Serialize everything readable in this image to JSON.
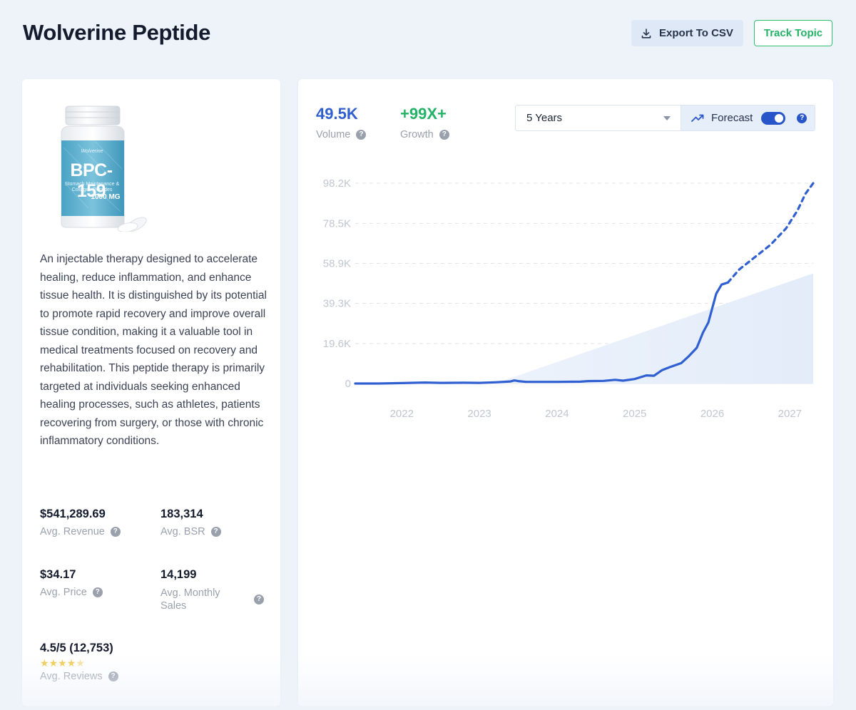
{
  "header": {
    "title": "Wolverine Peptide",
    "export_label": "Export To CSV",
    "track_label": "Track Topic"
  },
  "product": {
    "image_alt": "BPC-159 bottle",
    "bottle_brand": "Wolverine",
    "bottle_name": "BPC-159",
    "bottle_subtext": "Stomach Maintenance & Collagen Peptides",
    "bottle_dose": "1000 MG",
    "description": "An injectable therapy designed to accelerate healing, reduce inflammation, and enhance tissue health. It is distinguished by its potential to promote rapid recovery and improve overall tissue condition, making it a valuable tool in medical treatments focused on recovery and rehabilitation. This peptide therapy is primarily targeted at individuals seeking enhanced healing processes, such as athletes, patients recovering from surgery, or those with chronic inflammatory conditions."
  },
  "stats": {
    "revenue": {
      "value": "$541,289.69",
      "label": "Avg. Revenue"
    },
    "bsr": {
      "value": "183,314",
      "label": "Avg. BSR"
    },
    "price": {
      "value": "$34.17",
      "label": "Avg. Price"
    },
    "monthly_sales": {
      "value": "14,199",
      "label": "Avg. Monthly Sales"
    },
    "reviews": {
      "value": "4.5/5 (12,753)",
      "label": "Avg. Reviews",
      "rating": 4.5
    }
  },
  "metrics": {
    "volume": {
      "value": "49.5K",
      "label": "Volume"
    },
    "growth": {
      "value": "+99X+",
      "label": "Growth"
    }
  },
  "controls": {
    "range_selected": "5 Years",
    "forecast_label": "Forecast",
    "forecast_on": true
  },
  "icons": {
    "help": "?",
    "star": "★"
  },
  "colors": {
    "line": "#2f5fd0",
    "growth": "#22b366",
    "accent": "#2856c8",
    "track": "#2fbf71"
  },
  "chart_data": {
    "type": "line",
    "y_ticks": [
      "98.2K",
      "78.5K",
      "58.9K",
      "39.3K",
      "19.6K",
      "0"
    ],
    "y_tick_values": [
      98200,
      78500,
      58900,
      39300,
      19600,
      0
    ],
    "x_ticks": [
      "2022",
      "2023",
      "2024",
      "2025",
      "2026",
      "2027"
    ],
    "ylim": [
      0,
      98200
    ],
    "xlim": [
      2021.4,
      2027.3
    ],
    "grid": true,
    "series": [
      {
        "style": "solid",
        "points": [
          [
            2021.4,
            0
          ],
          [
            2021.7,
            0
          ],
          [
            2022.0,
            200
          ],
          [
            2022.3,
            500
          ],
          [
            2022.5,
            300
          ],
          [
            2022.8,
            400
          ],
          [
            2023.0,
            300
          ],
          [
            2023.2,
            600
          ],
          [
            2023.4,
            1000
          ],
          [
            2023.45,
            1500
          ],
          [
            2023.5,
            1200
          ],
          [
            2023.6,
            800
          ],
          [
            2024.0,
            800
          ],
          [
            2024.3,
            900
          ],
          [
            2024.4,
            1200
          ],
          [
            2024.6,
            1300
          ],
          [
            2024.75,
            1800
          ],
          [
            2024.85,
            1400
          ],
          [
            2025.0,
            2200
          ],
          [
            2025.15,
            4000
          ],
          [
            2025.25,
            3800
          ],
          [
            2025.35,
            6500
          ],
          [
            2025.45,
            8000
          ],
          [
            2025.6,
            10000
          ],
          [
            2025.7,
            13500
          ],
          [
            2025.8,
            17500
          ],
          [
            2025.88,
            25000
          ],
          [
            2025.95,
            30000
          ],
          [
            2026.05,
            44000
          ],
          [
            2026.12,
            48500
          ],
          [
            2026.2,
            49500
          ]
        ]
      },
      {
        "style": "dashed",
        "points": [
          [
            2026.2,
            49500
          ],
          [
            2026.35,
            56000
          ],
          [
            2026.55,
            62000
          ],
          [
            2026.75,
            68000
          ],
          [
            2026.95,
            76000
          ],
          [
            2027.1,
            85000
          ],
          [
            2027.2,
            93000
          ],
          [
            2027.3,
            98200
          ]
        ]
      }
    ],
    "trend_area": {
      "start": [
        2023.2,
        0
      ],
      "end": [
        2027.3,
        54000
      ]
    }
  }
}
